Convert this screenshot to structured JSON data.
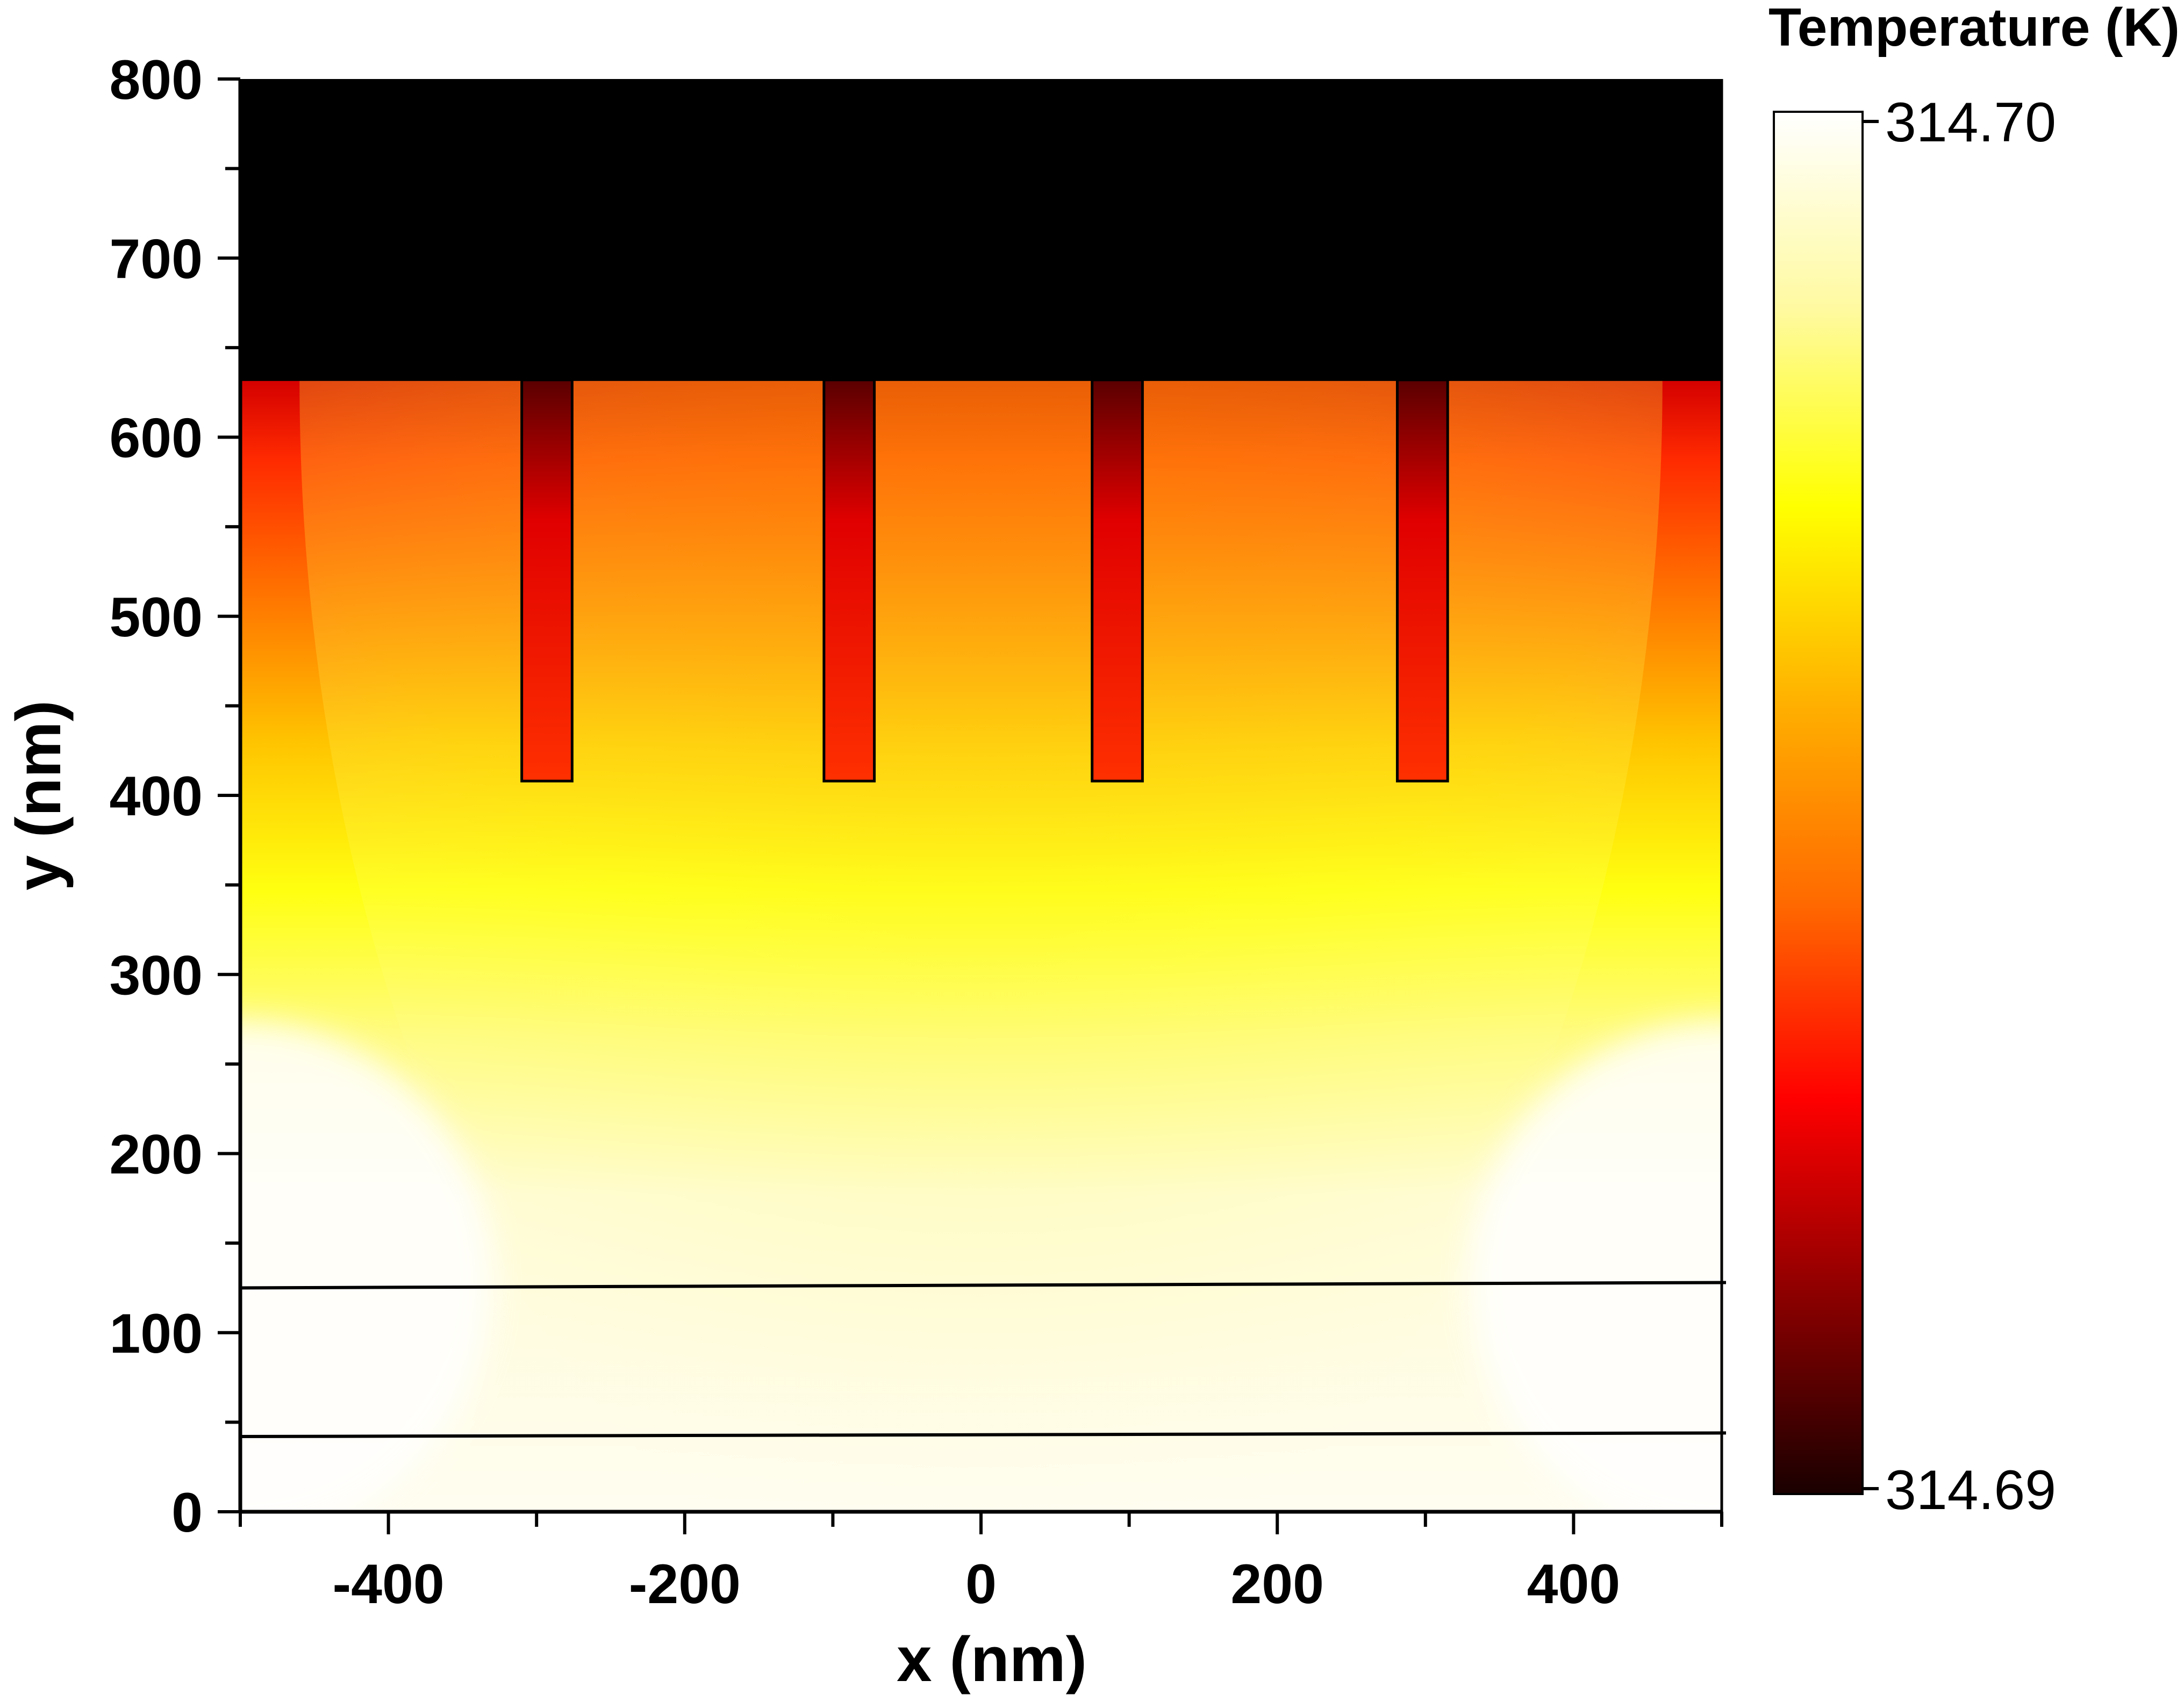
{
  "chart_data": {
    "type": "heatmap",
    "title": "",
    "xlabel": "x (nm)",
    "ylabel": "y (nm)",
    "xlim": [
      -500,
      500
    ],
    "ylim": [
      0,
      800
    ],
    "x_ticks": [
      {
        "value": -400,
        "label": "-400"
      },
      {
        "value": -200,
        "label": "-200"
      },
      {
        "value": 0,
        "label": "0"
      },
      {
        "value": 200,
        "label": "200"
      },
      {
        "value": 400,
        "label": "400"
      }
    ],
    "y_ticks": [
      {
        "value": 0,
        "label": "0"
      },
      {
        "value": 100,
        "label": "100"
      },
      {
        "value": 200,
        "label": "200"
      },
      {
        "value": 300,
        "label": "300"
      },
      {
        "value": 400,
        "label": "400"
      },
      {
        "value": 500,
        "label": "500"
      },
      {
        "value": 600,
        "label": "600"
      },
      {
        "value": 700,
        "label": "700"
      },
      {
        "value": 800,
        "label": "800"
      }
    ],
    "colorbar": {
      "title": "Temperature (K)",
      "max_label": "314.70",
      "min_label": "314.69",
      "max": 314.7,
      "min": 314.69,
      "colormap": "hot",
      "colors": [
        "#1a0000",
        "#8b0000",
        "#ff0000",
        "#ff6a00",
        "#ffb000",
        "#ffff00",
        "#fffaa0",
        "#ffffff"
      ]
    },
    "top_region": {
      "y_min": 632,
      "y_max": 800,
      "color": "#000000"
    },
    "pillars": [
      {
        "x0": -310,
        "x1": -276,
        "y0": 408,
        "y1": 632
      },
      {
        "x0": -106,
        "x1": -72,
        "y0": 408,
        "y1": 632
      },
      {
        "x0": 75,
        "x1": 109,
        "y0": 408,
        "y1": 632
      },
      {
        "x0": 281,
        "x1": 315,
        "y0": 408,
        "y1": 632
      }
    ],
    "layer_lines": [
      {
        "x": [
          -500,
          500
        ],
        "y": [
          125,
          128
        ]
      },
      {
        "x": [
          -500,
          500
        ],
        "y": [
          42,
          44
        ]
      }
    ]
  }
}
